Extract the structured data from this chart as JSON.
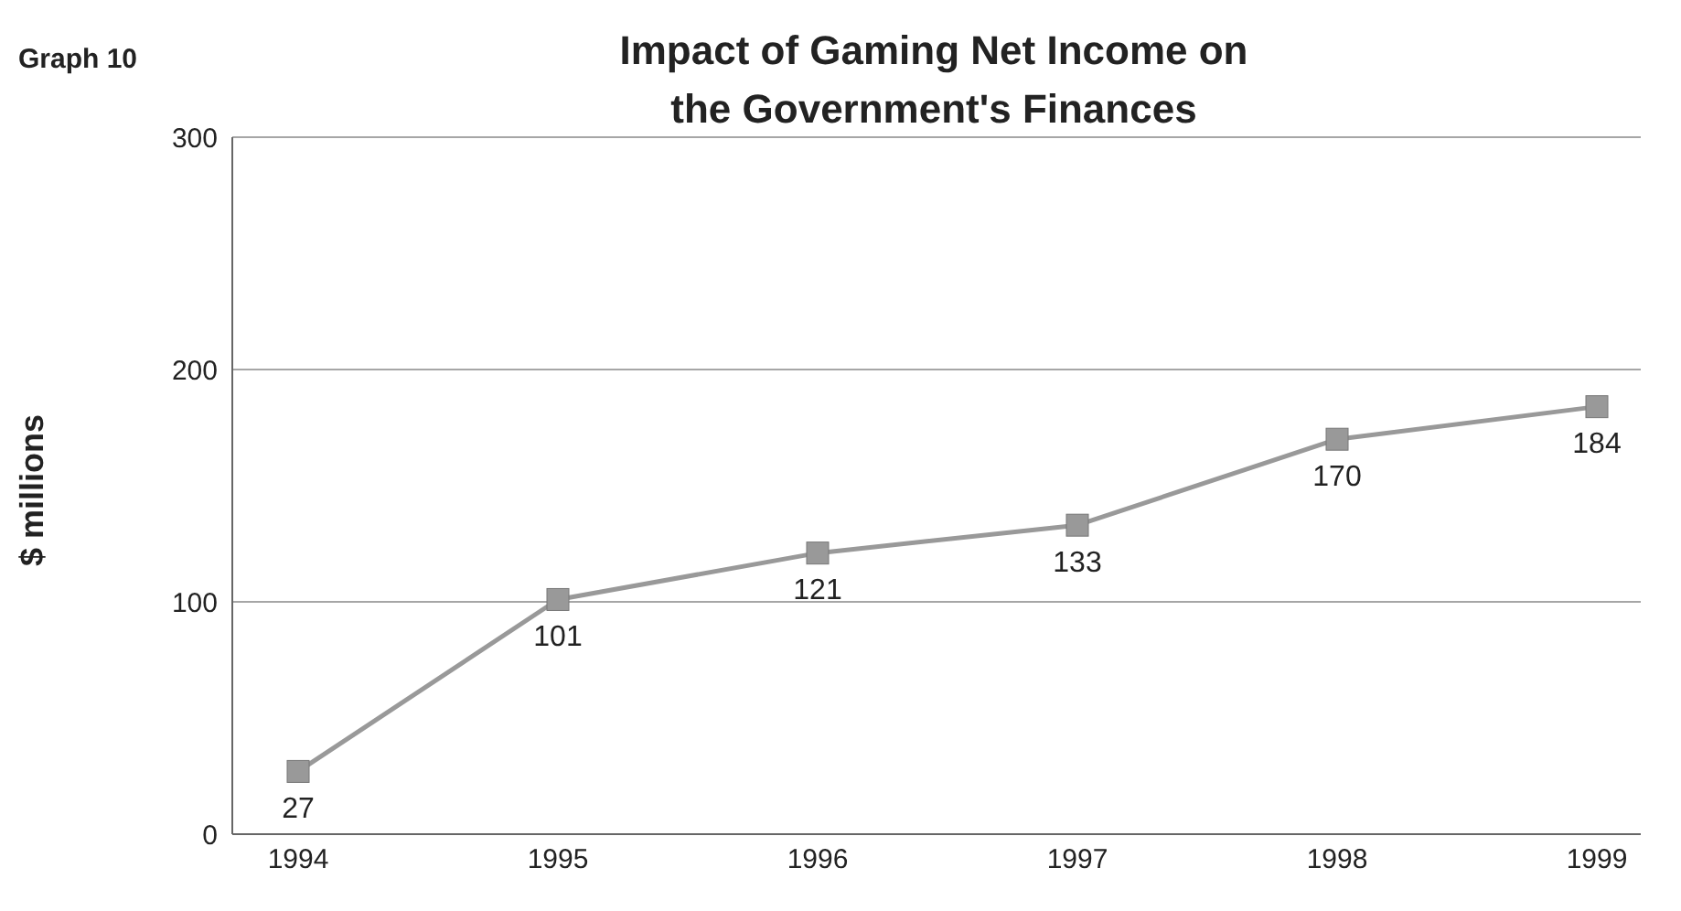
{
  "chart_data": {
    "type": "line",
    "title": "Impact of Gaming Net Income on the Government's Finances",
    "annotations": [
      "Graph 10"
    ],
    "ylabel": "$ millions",
    "categories": [
      "1994",
      "1995",
      "1996",
      "1997",
      "1998",
      "1999"
    ],
    "series": [
      {
        "color": "#999999",
        "values": [
          27,
          101,
          121,
          133,
          170,
          184
        ]
      }
    ],
    "ylim": [
      0,
      300
    ],
    "yticks": [
      0,
      100,
      200,
      300
    ],
    "grid": "y",
    "marker": "square",
    "data_labels": true
  }
}
